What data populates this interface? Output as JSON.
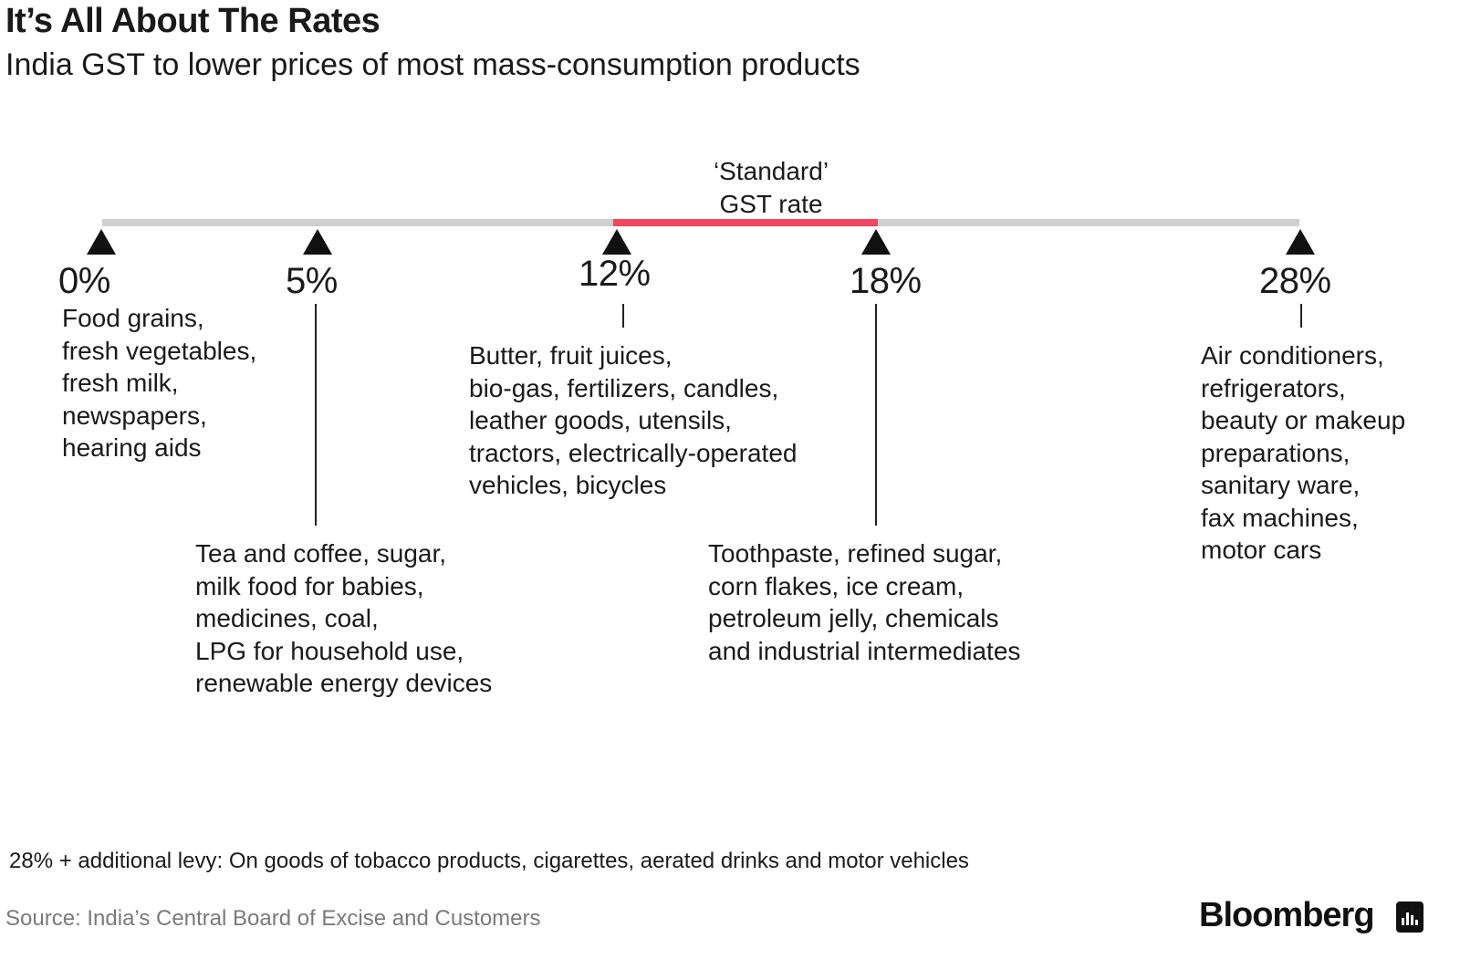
{
  "header": {
    "title": "It’s All About The Rates",
    "subtitle": "India GST to lower prices of most mass-consumption products"
  },
  "timeline": {
    "standard_label_line1": "‘Standard’",
    "standard_label_line2": "GST rate",
    "standard_range": [
      "12%",
      "18%"
    ],
    "colors": {
      "track": "#cfcfcf",
      "standard": "#f0475e"
    },
    "rates": [
      {
        "rate": "0%",
        "items": [
          "Food grains,",
          "fresh vegetables,",
          "fresh milk,",
          "newspapers,",
          "hearing aids"
        ]
      },
      {
        "rate": "5%",
        "items": [
          "Tea and coffee, sugar,",
          "milk food for babies,",
          "medicines, coal,",
          "LPG for household use,",
          "renewable energy devices"
        ]
      },
      {
        "rate": "12%",
        "items": [
          "Butter, fruit juices,",
          "bio-gas, fertilizers, candles,",
          "leather goods, utensils,",
          "tractors, electrically-operated",
          "vehicles, bicycles"
        ]
      },
      {
        "rate": "18%",
        "items": [
          "Toothpaste, refined sugar,",
          "corn flakes, ice cream,",
          "petroleum jelly, chemicals",
          "and industrial intermediates"
        ]
      },
      {
        "rate": "28%",
        "items": [
          "Air conditioners,",
          "refrigerators,",
          "beauty or makeup",
          "preparations,",
          "sanitary ware,",
          "fax machines,",
          "motor cars"
        ]
      }
    ]
  },
  "footer": {
    "footnote": "28% + additional levy: On goods of tobacco products, cigarettes, aerated drinks and motor vehicles",
    "source": "Source:  India’s Central Board of Excise and Customers",
    "brand": "Bloomberg",
    "brand_icon": "bloomberg-chart-icon"
  }
}
